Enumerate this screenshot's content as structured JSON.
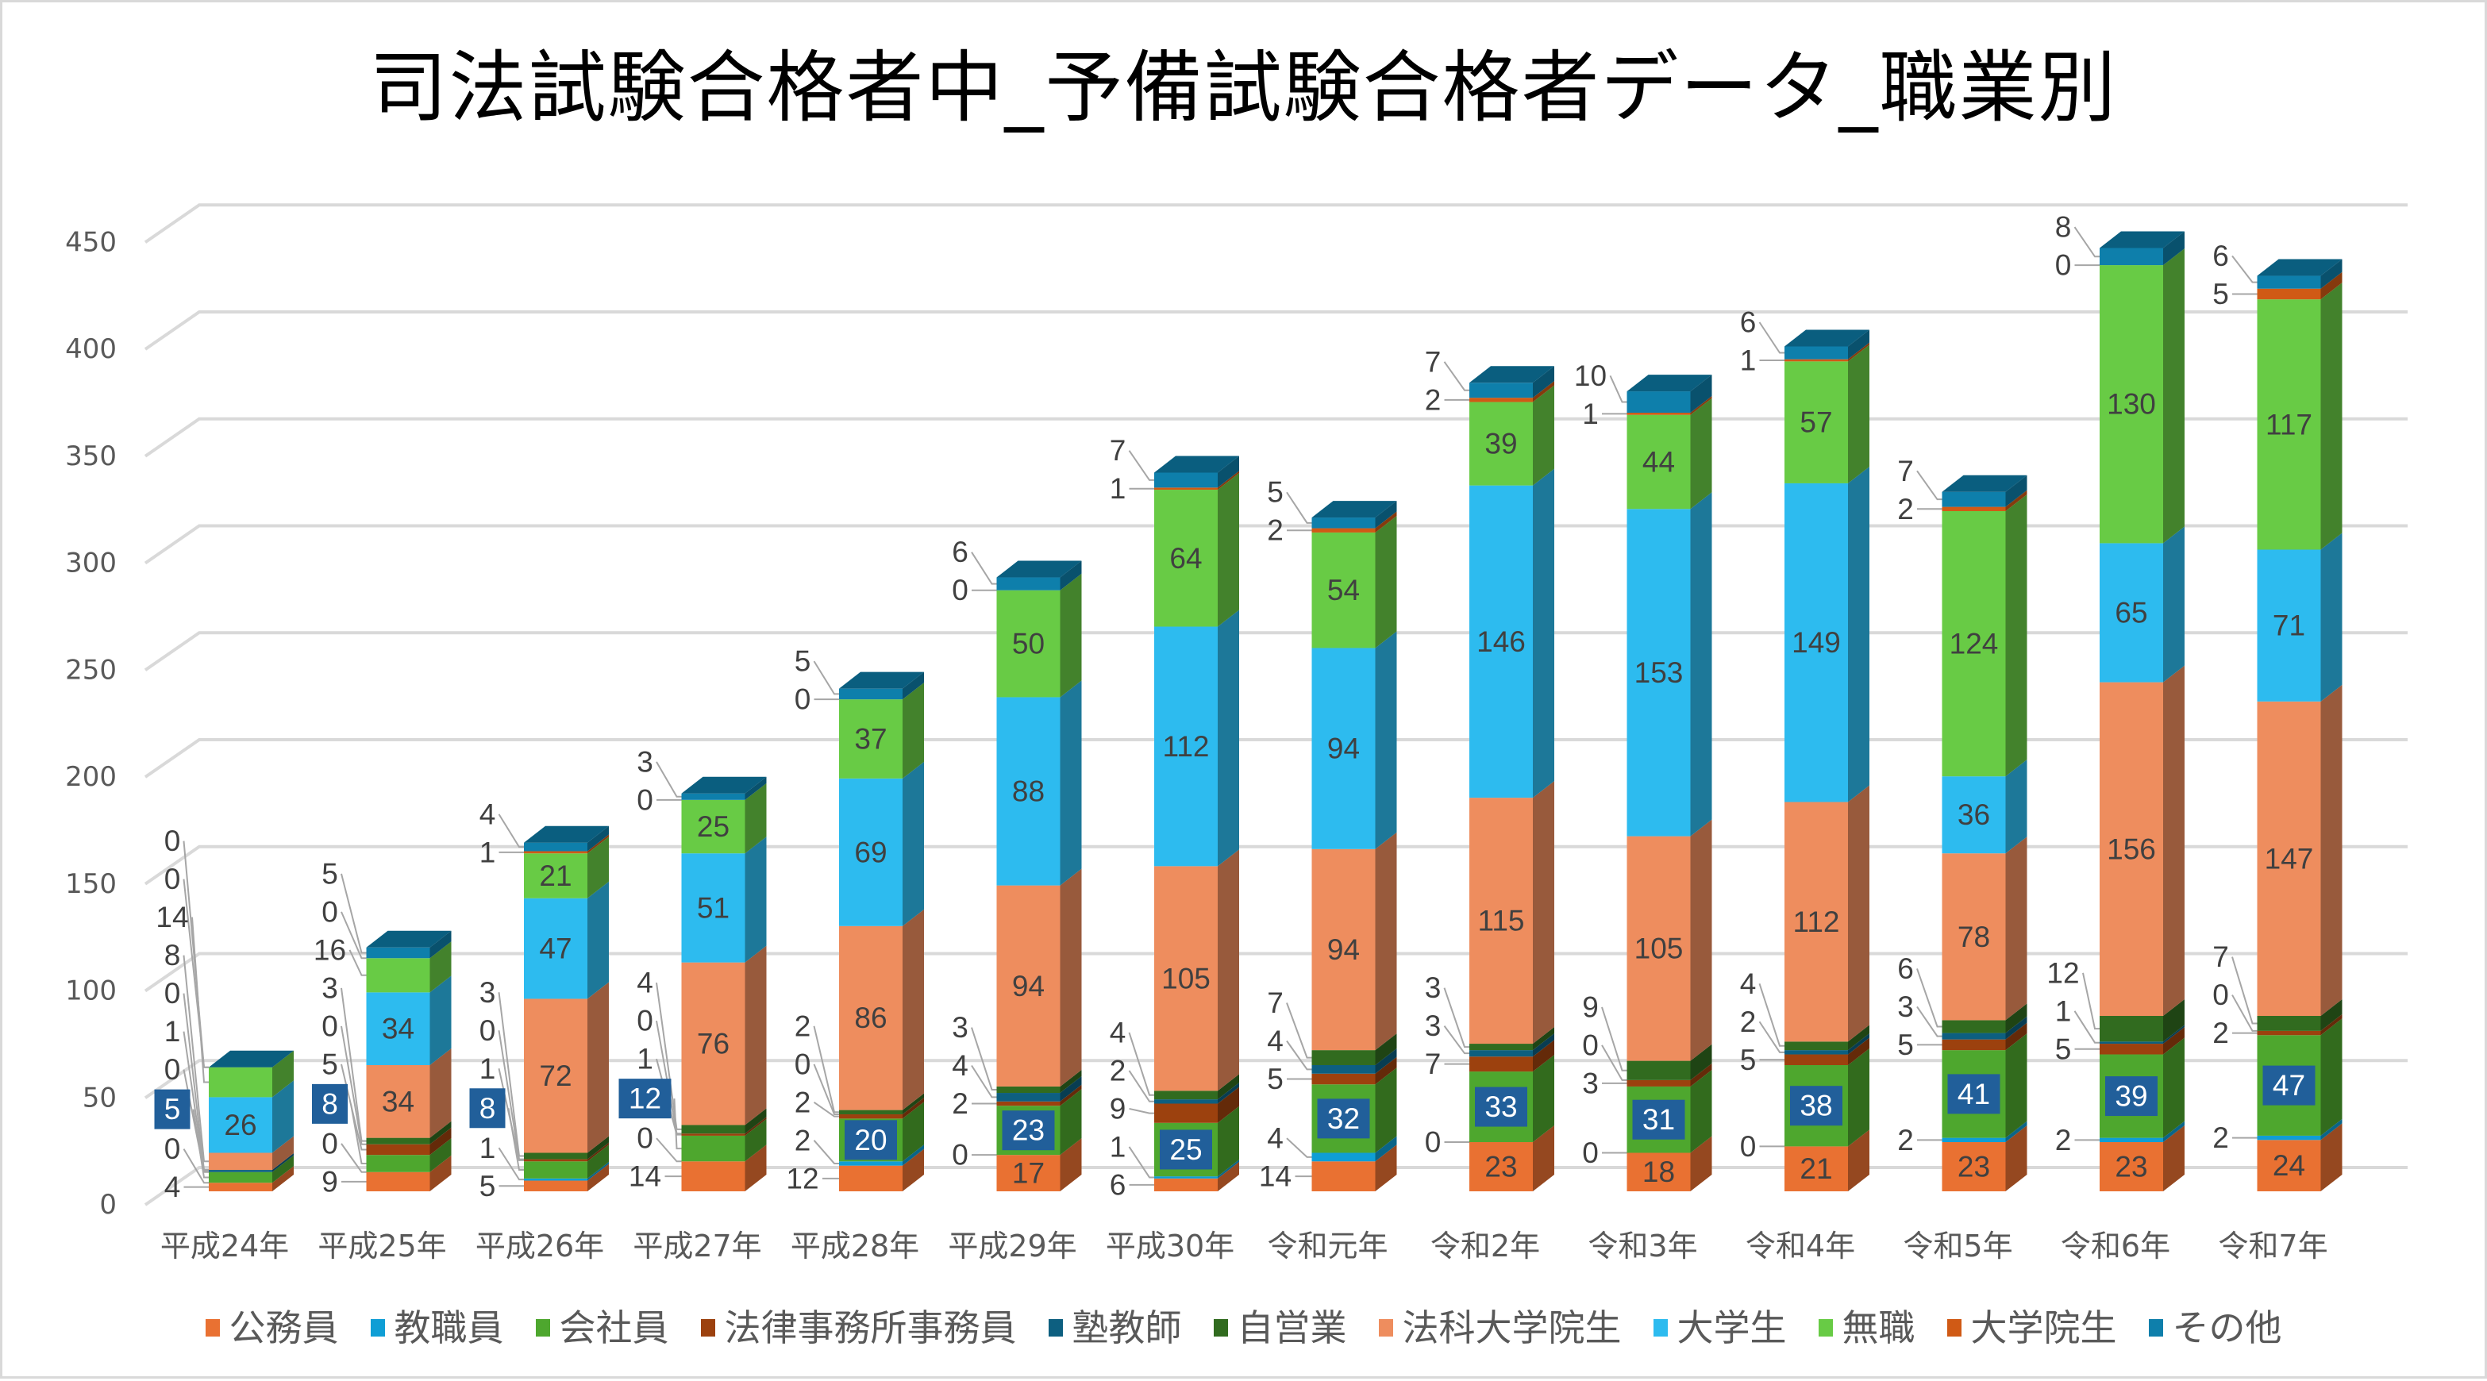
{
  "chart_data": {
    "type": "bar",
    "stacked": true,
    "three_d": true,
    "title": "司法試験合格者中_予備試験合格者データ_職業別",
    "xlabel": "",
    "ylabel": "",
    "ylim": [
      0,
      450
    ],
    "yticks": [
      0,
      50,
      100,
      150,
      200,
      250,
      300,
      350,
      400,
      450
    ],
    "grid": true,
    "legend_position": "bottom",
    "categories": [
      "平成24年",
      "平成25年",
      "平成26年",
      "平成27年",
      "平成28年",
      "平成29年",
      "平成30年",
      "令和元年",
      "令和2年",
      "令和3年",
      "令和4年",
      "令和5年",
      "令和6年",
      "令和7年"
    ],
    "series": [
      {
        "name": "公務員",
        "color": "#E97132",
        "label_color": "#404040",
        "values": [
          4,
          9,
          5,
          14,
          12,
          17,
          6,
          14,
          23,
          18,
          21,
          23,
          23,
          24
        ]
      },
      {
        "name": "教職員",
        "color": "#0F9ED5",
        "label_color": "#404040",
        "values": [
          0,
          0,
          1,
          0,
          2,
          0,
          1,
          4,
          0,
          0,
          0,
          2,
          2,
          2
        ]
      },
      {
        "name": "会社員",
        "color": "#4EA72E",
        "label_color": "#FFFFFF",
        "label_box": "#215F9A",
        "values": [
          5,
          8,
          8,
          12,
          20,
          23,
          25,
          32,
          33,
          31,
          38,
          41,
          39,
          47
        ]
      },
      {
        "name": "法律事務所事務員",
        "color": "#9C410E",
        "label_color": "#404040",
        "values": [
          0,
          5,
          1,
          1,
          2,
          2,
          9,
          5,
          7,
          3,
          5,
          5,
          5,
          2
        ]
      },
      {
        "name": "塾教師",
        "color": "#0D5F80",
        "label_color": "#404040",
        "values": [
          1,
          0,
          0,
          0,
          0,
          4,
          2,
          4,
          3,
          0,
          2,
          3,
          1,
          0
        ]
      },
      {
        "name": "自営業",
        "color": "#316B1F",
        "label_color": "#FFFFFF",
        "values": [
          0,
          3,
          3,
          4,
          2,
          3,
          4,
          7,
          3,
          9,
          4,
          6,
          12,
          7
        ]
      },
      {
        "name": "法科大学院生",
        "color": "#EE8D5E",
        "label_color": "#404040",
        "values": [
          8,
          34,
          72,
          76,
          86,
          94,
          105,
          94,
          115,
          105,
          112,
          78,
          156,
          147
        ]
      },
      {
        "name": "大学生",
        "color": "#2DBBEF",
        "label_color": "#404040",
        "values": [
          26,
          34,
          47,
          51,
          69,
          88,
          112,
          94,
          146,
          153,
          149,
          36,
          65,
          71
        ]
      },
      {
        "name": "無職",
        "color": "#68CB45",
        "label_color": "#404040",
        "values": [
          14,
          16,
          21,
          25,
          37,
          50,
          64,
          54,
          39,
          44,
          57,
          124,
          130,
          117
        ]
      },
      {
        "name": "大学院生",
        "color": "#D05A15",
        "label_color": "#404040",
        "values": [
          0,
          0,
          1,
          0,
          0,
          0,
          1,
          2,
          2,
          1,
          1,
          2,
          0,
          5
        ]
      },
      {
        "name": "その他",
        "color": "#0E7FAB",
        "label_color": "#FFFFFF",
        "values": [
          0,
          5,
          4,
          3,
          5,
          6,
          7,
          5,
          7,
          10,
          6,
          7,
          8,
          6
        ]
      }
    ]
  }
}
